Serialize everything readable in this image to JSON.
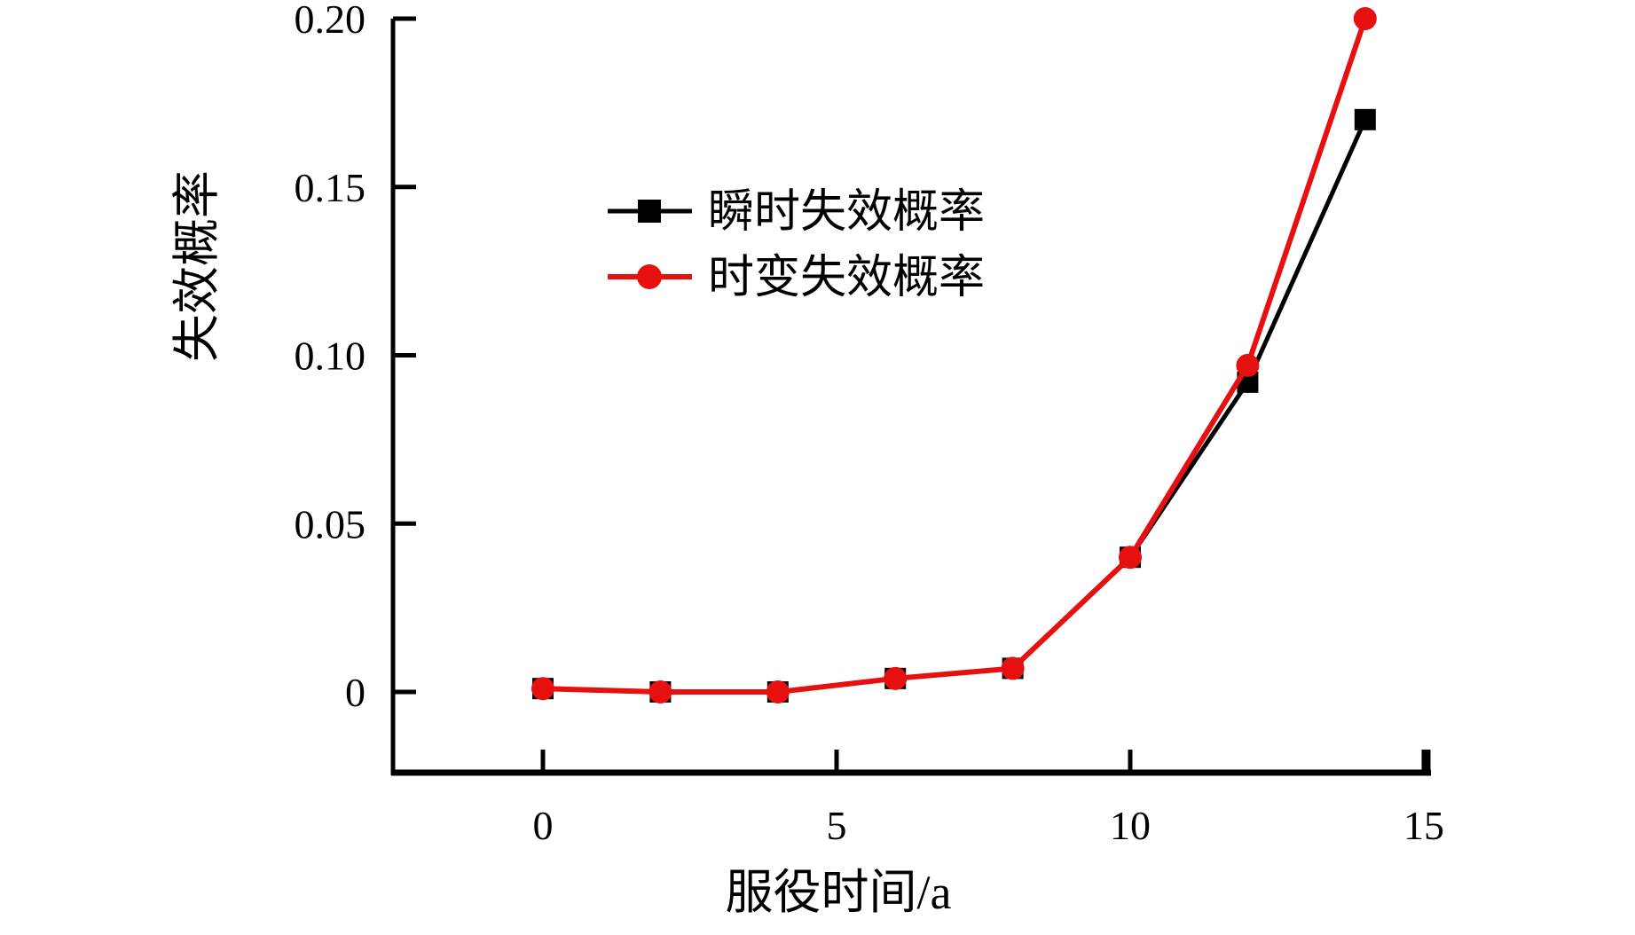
{
  "chart_data": {
    "type": "line",
    "title": "",
    "xlabel": "服役时间/a",
    "ylabel": "失效概率",
    "x": [
      0,
      2,
      4,
      6,
      8,
      10,
      12,
      14
    ],
    "series": [
      {
        "name": "瞬时失效概率",
        "color": "#000000",
        "marker": "square",
        "values": [
          0.001,
          0.0,
          0.0,
          0.004,
          0.007,
          0.04,
          0.092,
          0.17
        ]
      },
      {
        "name": "时变失效概率",
        "color": "#e61010",
        "marker": "circle",
        "values": [
          0.001,
          0.0,
          0.0,
          0.004,
          0.007,
          0.04,
          0.097,
          0.2
        ]
      }
    ],
    "xticks": {
      "values": [
        0,
        5,
        10,
        15
      ],
      "labels": [
        "0",
        "5",
        "10",
        "15"
      ]
    },
    "yticks": {
      "values": [
        0,
        0.05,
        0.1,
        0.15,
        0.2
      ],
      "labels": [
        "0",
        "0.05",
        "0.10",
        "0.15",
        "0.20"
      ]
    },
    "xlim": [
      0,
      15
    ],
    "ylim": [
      0,
      0.2
    ],
    "grid": false,
    "legend_position": "inside-upper-left",
    "background": "#ffffff",
    "axis_color": "#000000"
  }
}
